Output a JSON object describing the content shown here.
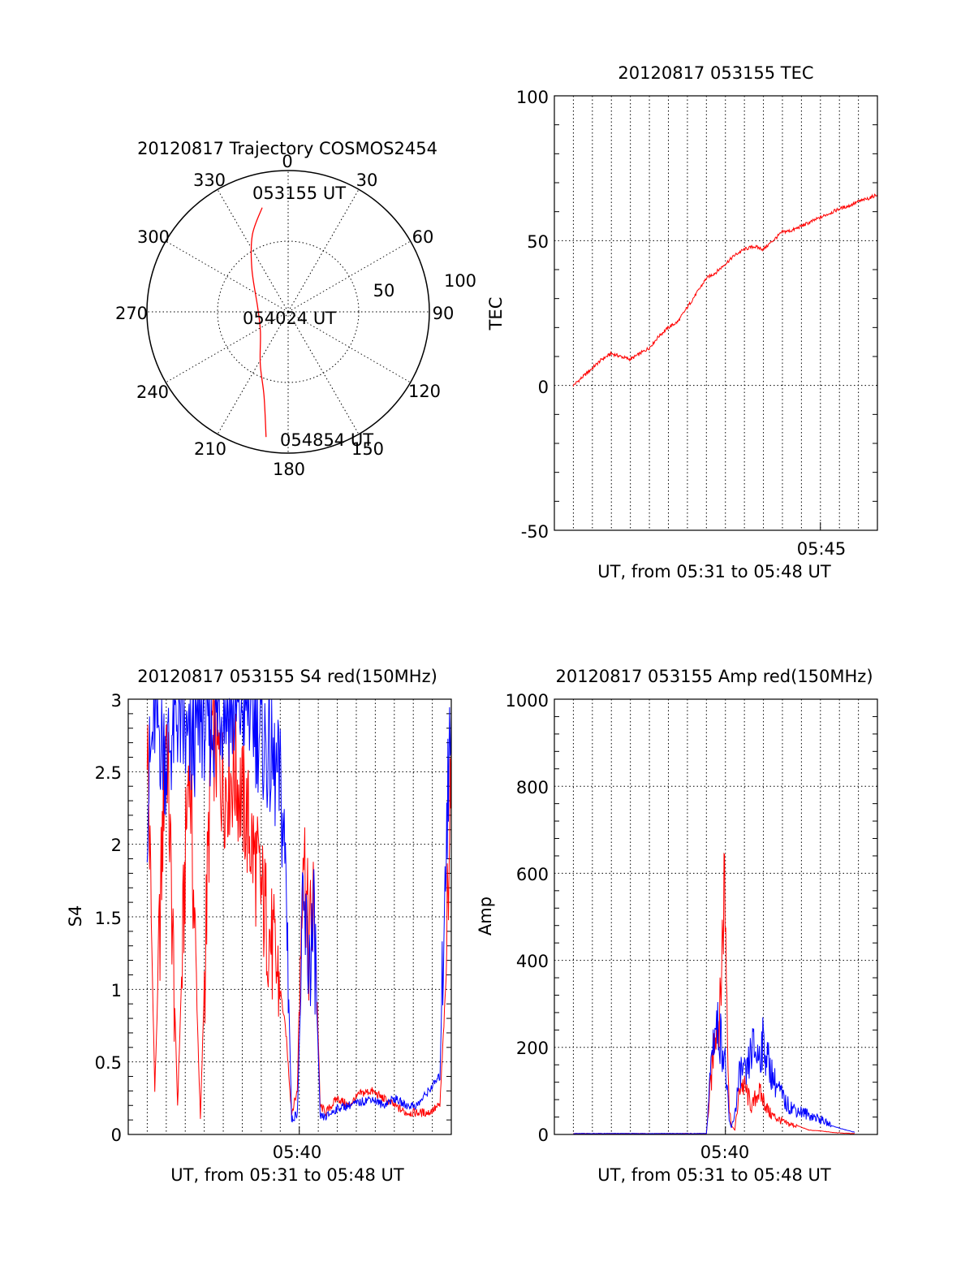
{
  "figure": {
    "panels": {
      "polar": {
        "title": "20120817 Trajectory COSMOS2454",
        "azimuth_labels": [
          "0",
          "30",
          "60",
          "90",
          "120",
          "150",
          "180",
          "210",
          "240",
          "270",
          "300",
          "330"
        ],
        "ring_labels": [
          "50",
          "100"
        ],
        "time_labels": {
          "start": "053155 UT",
          "mid": "054024 UT",
          "end": "054854 UT"
        }
      },
      "tec": {
        "title": "20120817 053155 TEC",
        "ylabel": "TEC",
        "yticks": [
          "100",
          "50",
          "0",
          "-50"
        ],
        "xtick": "05:45",
        "xlabel": "UT, from 05:31 to 05:48 UT"
      },
      "s4": {
        "title": "20120817 053155 S4 red(150MHz)",
        "ylabel": "S4",
        "yticks": [
          "3",
          "2.5",
          "2",
          "1.5",
          "1",
          "0.5",
          "0"
        ],
        "xtick": "05:40",
        "xlabel": "UT, from 05:31 to 05:48 UT"
      },
      "amp": {
        "title": "20120817 053155 Amp red(150MHz)",
        "ylabel": "Amp",
        "yticks": [
          "1000",
          "800",
          "600",
          "400",
          "200",
          "0"
        ],
        "xtick": "05:40",
        "xlabel": "UT, from 05:31 to 05:48 UT"
      }
    }
  },
  "chart_data": [
    {
      "type": "scatter",
      "subtype": "polar-trajectory",
      "title": "20120817 Trajectory COSMOS2454",
      "angular_axis": {
        "ticks_deg": [
          0,
          30,
          60,
          90,
          120,
          150,
          180,
          210,
          240,
          270,
          300,
          330
        ],
        "direction": "clockwise",
        "zero_at": "top"
      },
      "radial_axis": {
        "rings": [
          50,
          100
        ]
      },
      "series": [
        {
          "color": "#ff0000",
          "points": [
            {
              "az": 346,
              "r": 76,
              "label": "053155 UT"
            },
            {
              "az": 335,
              "r": 60
            },
            {
              "az": 320,
              "r": 40
            },
            {
              "az": 280,
              "r": 22
            },
            {
              "az": 235,
              "r": 24
            },
            {
              "az": 208,
              "r": 42
            },
            {
              "az": 196,
              "r": 62
            },
            {
              "az": 190,
              "r": 90,
              "label": "054854 UT"
            }
          ]
        }
      ],
      "annotations": [
        "054024 UT"
      ]
    },
    {
      "type": "line",
      "title": "20120817 053155 TEC",
      "xlabel": "UT, from 05:31 to 05:48 UT",
      "ylabel": "TEC",
      "xlim": [
        5.5167,
        5.8
      ],
      "ylim": [
        -50,
        100
      ],
      "xtick_values": [
        5.75
      ],
      "xtick_labels": [
        "05:45"
      ],
      "yticks": [
        -50,
        0,
        50,
        100
      ],
      "grid": true,
      "series": [
        {
          "color": "#ff0000",
          "x": [
            5.5333,
            5.5417,
            5.55,
            5.5583,
            5.5667,
            5.575,
            5.5833,
            5.5917,
            5.6,
            5.6083,
            5.6167,
            5.625,
            5.6333,
            5.6417,
            5.65,
            5.6583,
            5.6667,
            5.675,
            5.6833,
            5.6917,
            5.7,
            5.7083,
            5.7167,
            5.725,
            5.7333,
            5.7417,
            5.75,
            5.7583,
            5.7667,
            5.775,
            5.7833,
            5.7917,
            5.8
          ],
          "y": [
            0,
            3,
            6,
            9,
            11,
            10,
            9,
            11,
            13,
            17,
            20,
            22,
            27,
            32,
            37,
            39,
            42,
            45,
            47,
            48,
            47,
            50,
            53,
            53.5,
            55,
            56.5,
            58,
            59.5,
            61,
            62,
            63.5,
            64.5,
            66
          ]
        }
      ]
    },
    {
      "type": "line",
      "title": "20120817 053155 S4 red(150MHz)",
      "xlabel": "UT, from 05:31 to 05:48 UT",
      "ylabel": "S4",
      "xlim": [
        5.5167,
        5.8
      ],
      "ylim": [
        0,
        3
      ],
      "xtick_values": [
        5.6667
      ],
      "xtick_labels": [
        "05:40"
      ],
      "yticks": [
        0,
        0.5,
        1,
        1.5,
        2,
        2.5,
        3
      ],
      "grid": true,
      "series": [
        {
          "color": "#ff0000",
          "x": [
            5.5333,
            5.54,
            5.55,
            5.56,
            5.57,
            5.58,
            5.59,
            5.6,
            5.61,
            5.62,
            5.63,
            5.64,
            5.65,
            5.655,
            5.66,
            5.665,
            5.67,
            5.675,
            5.68,
            5.685,
            5.69,
            5.695,
            5.7,
            5.71,
            5.72,
            5.73,
            5.74,
            5.75,
            5.76,
            5.77,
            5.78,
            5.79,
            5.795,
            5.8
          ],
          "y": [
            2.8,
            0.3,
            2.9,
            0.2,
            2.7,
            0.1,
            2.8,
            2.4,
            2.5,
            2.2,
            1.8,
            1.4,
            1.0,
            0.7,
            0.15,
            0.3,
            2.1,
            1.3,
            1.6,
            0.2,
            0.15,
            0.2,
            0.25,
            0.2,
            0.28,
            0.3,
            0.25,
            0.2,
            0.15,
            0.15,
            0.15,
            0.2,
            1.0,
            2.8
          ]
        },
        {
          "color": "#0000ff",
          "x": [
            5.5333,
            5.54,
            5.55,
            5.56,
            5.57,
            5.58,
            5.59,
            5.6,
            5.61,
            5.62,
            5.63,
            5.64,
            5.65,
            5.655,
            5.66,
            5.665,
            5.67,
            5.675,
            5.68,
            5.685,
            5.69,
            5.695,
            5.7,
            5.71,
            5.72,
            5.73,
            5.74,
            5.75,
            5.76,
            5.77,
            5.78,
            5.79,
            5.795,
            5.8
          ],
          "y": [
            2.3,
            2.9,
            2.6,
            2.9,
            2.6,
            2.9,
            2.8,
            3.0,
            2.9,
            3.0,
            2.8,
            2.6,
            2.4,
            1.8,
            0.1,
            0.15,
            1.5,
            1.2,
            1.4,
            0.12,
            0.12,
            0.15,
            0.18,
            0.2,
            0.22,
            0.25,
            0.2,
            0.25,
            0.2,
            0.2,
            0.3,
            0.4,
            2.0,
            2.9
          ]
        }
      ]
    },
    {
      "type": "line",
      "title": "20120817 053155 Amp red(150MHz)",
      "xlabel": "UT, from 05:31 to 05:48 UT",
      "ylabel": "Amp",
      "xlim": [
        5.5167,
        5.8
      ],
      "ylim": [
        0,
        1000
      ],
      "xtick_values": [
        5.6667
      ],
      "xtick_labels": [
        "05:40"
      ],
      "yticks": [
        0,
        200,
        400,
        600,
        800,
        1000
      ],
      "grid": true,
      "series": [
        {
          "color": "#ff0000",
          "x": [
            5.5333,
            5.55,
            5.6,
            5.65,
            5.655,
            5.658,
            5.662,
            5.666,
            5.67,
            5.672,
            5.675,
            5.68,
            5.685,
            5.69,
            5.695,
            5.7,
            5.705,
            5.71,
            5.72,
            5.73,
            5.74,
            5.75,
            5.76,
            5.77,
            5.78
          ],
          "y": [
            2,
            2,
            2,
            2,
            150,
            260,
            280,
            605,
            60,
            20,
            10,
            120,
            100,
            60,
            100,
            80,
            50,
            40,
            25,
            20,
            10,
            8,
            5,
            3,
            2
          ]
        },
        {
          "color": "#0000ff",
          "x": [
            5.5333,
            5.55,
            5.6,
            5.65,
            5.655,
            5.658,
            5.662,
            5.666,
            5.67,
            5.672,
            5.675,
            5.68,
            5.685,
            5.69,
            5.695,
            5.7,
            5.705,
            5.71,
            5.72,
            5.73,
            5.74,
            5.75,
            5.76,
            5.77,
            5.78
          ],
          "y": [
            2,
            2,
            2,
            2,
            200,
            250,
            230,
            180,
            30,
            15,
            50,
            150,
            130,
            200,
            180,
            210,
            160,
            120,
            70,
            55,
            45,
            35,
            20,
            12,
            5
          ]
        }
      ]
    }
  ]
}
